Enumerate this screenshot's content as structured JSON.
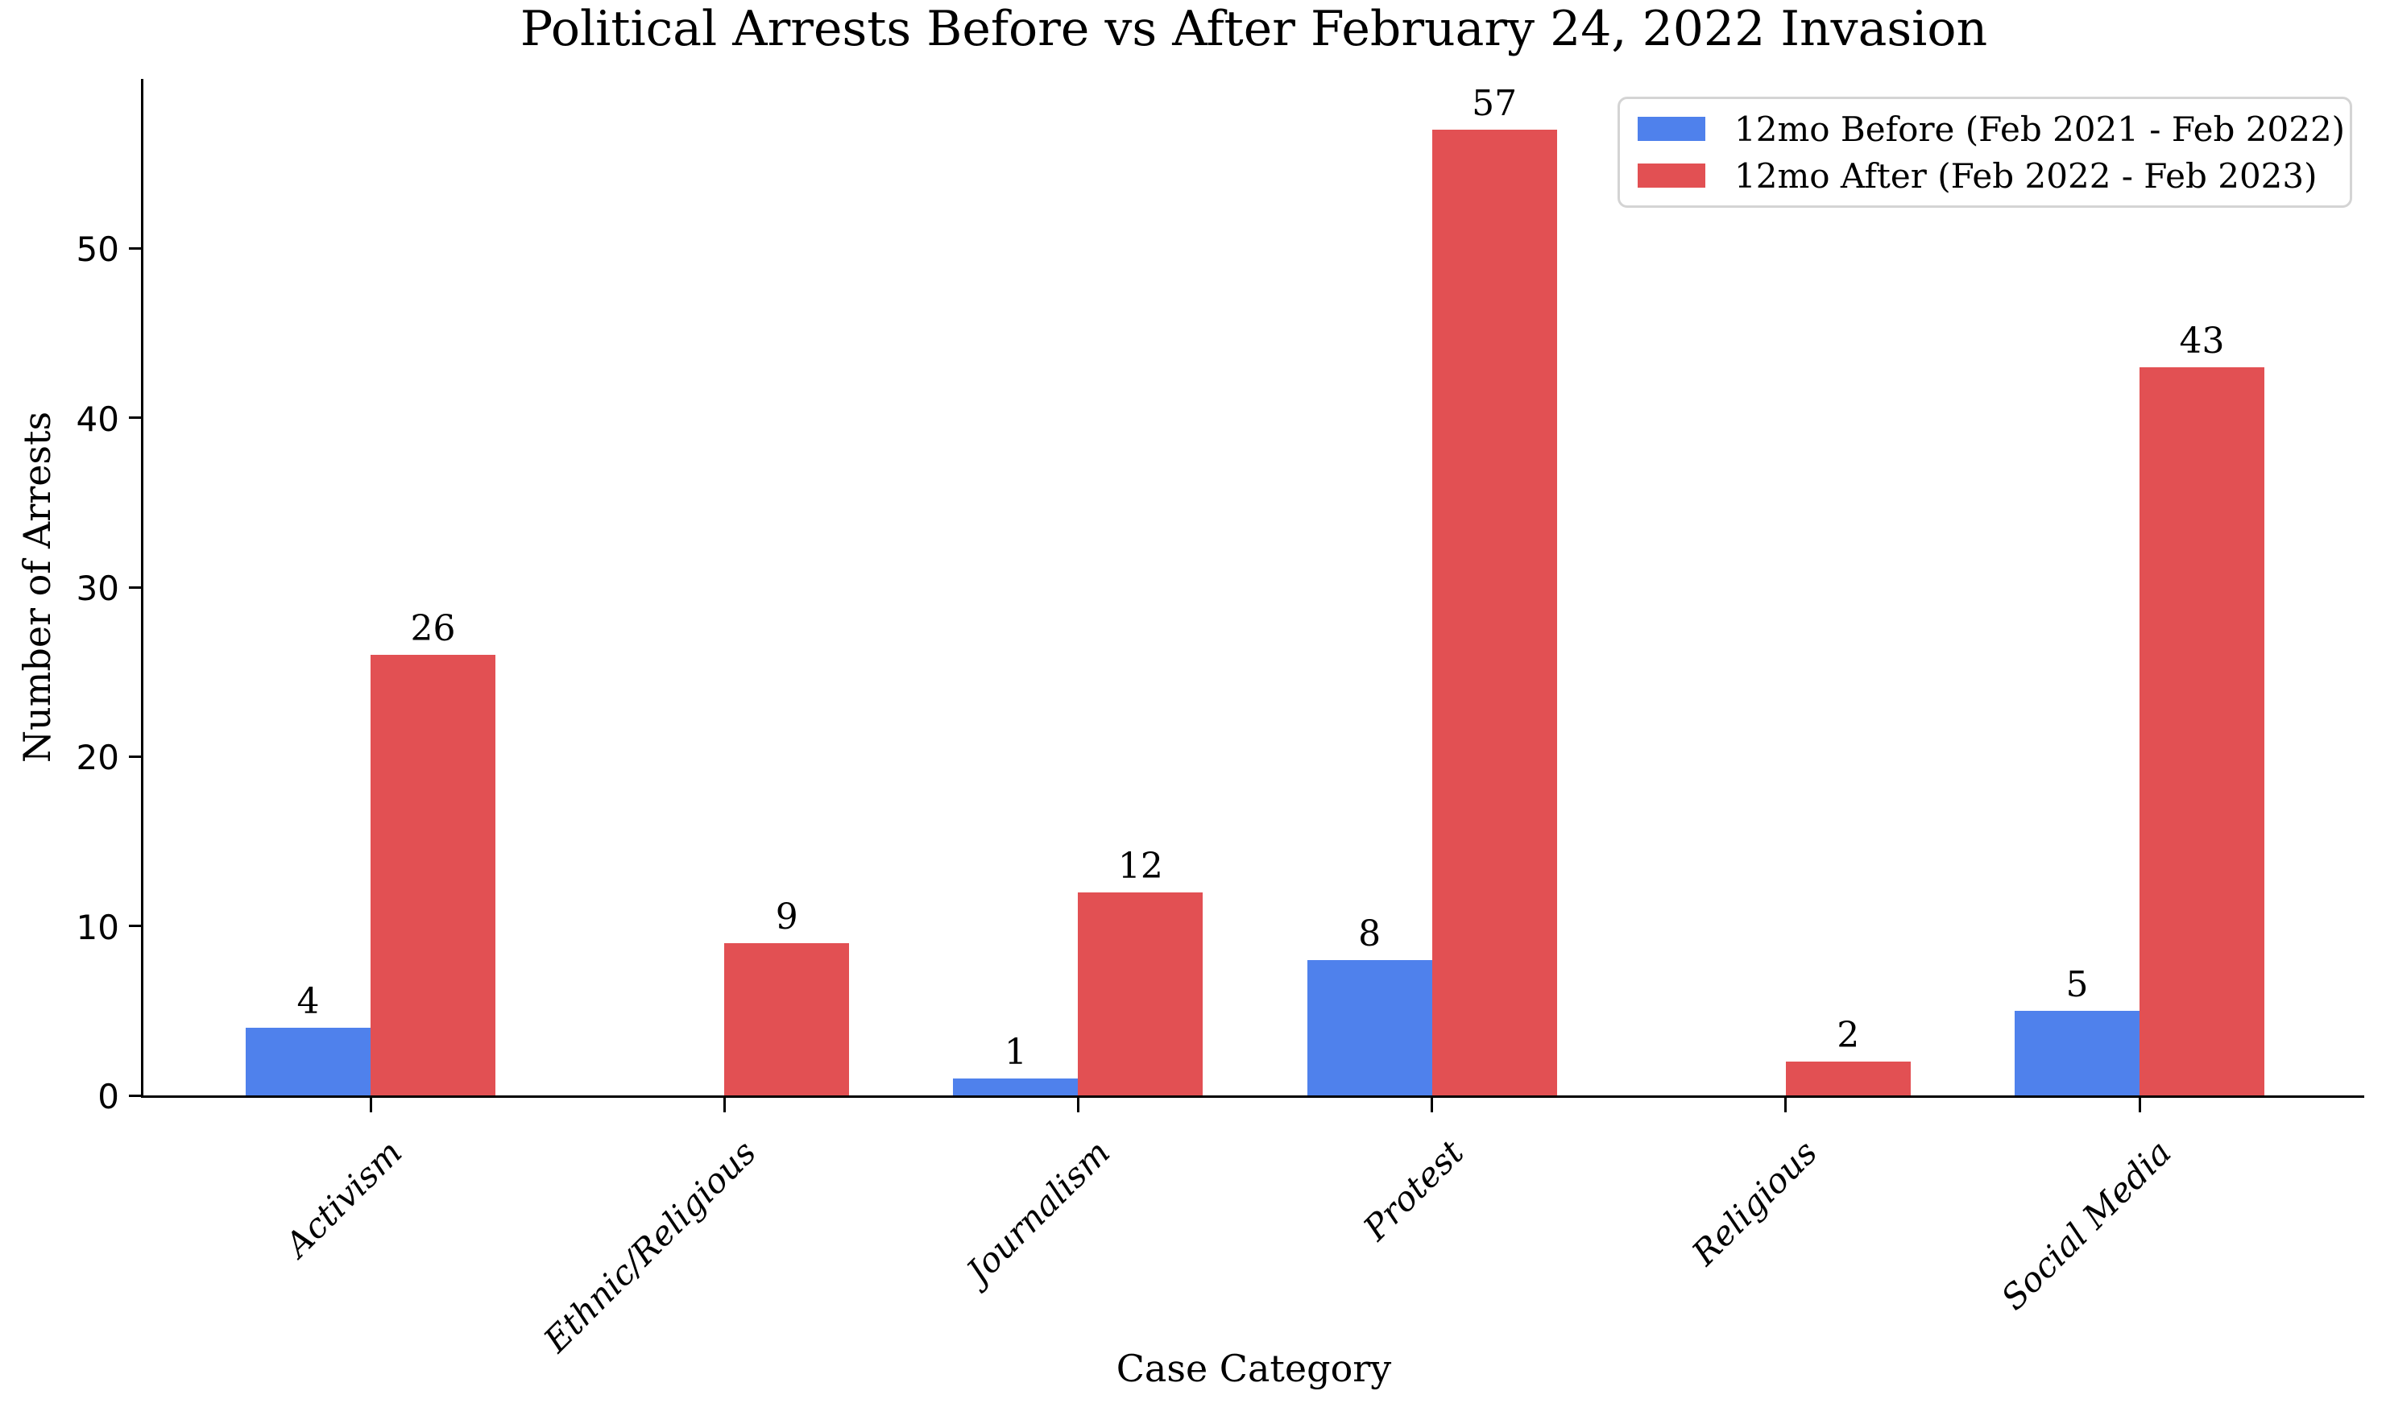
{
  "title": "Political Arrests Before vs After February 24, 2022 Invasion",
  "chart_data": {
    "type": "bar",
    "title": "Political Arrests Before vs After February 24, 2022 Invasion",
    "xlabel": "Case Category",
    "ylabel": "Number of Arrests",
    "categories": [
      "Activism",
      "Ethnic/Religious",
      "Journalism",
      "Protest",
      "Religious",
      "Social Media"
    ],
    "series": [
      {
        "name": "12mo Before (Feb 2021 - Feb 2022)",
        "color": "#4f81ec",
        "values": [
          4,
          0,
          1,
          8,
          0,
          5
        ]
      },
      {
        "name": "12mo After (Feb 2022 - Feb 2023)",
        "color": "#e25053",
        "values": [
          26,
          9,
          12,
          57,
          2,
          43
        ]
      }
    ],
    "yticks": [
      0,
      10,
      20,
      30,
      40,
      50
    ],
    "ylim": [
      0,
      60
    ],
    "grid": false,
    "legend_position": "upper right",
    "bar_value_labels": true,
    "value_labels_shown_only_for_nonzero_bars": true
  }
}
